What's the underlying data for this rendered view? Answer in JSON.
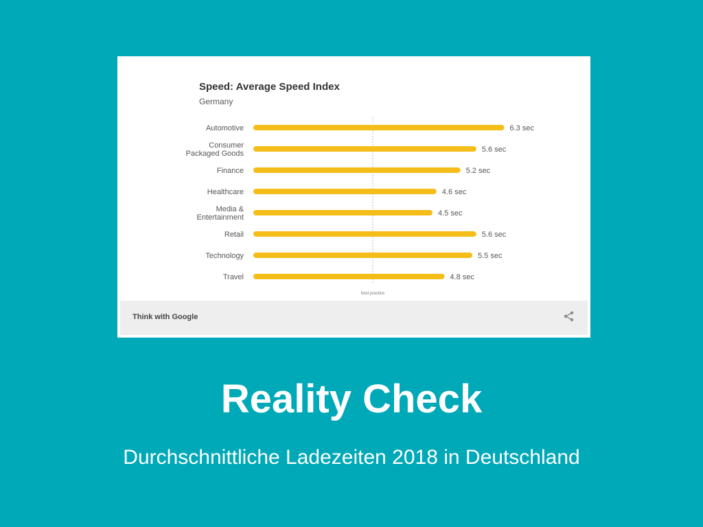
{
  "chart_data": {
    "type": "bar",
    "orientation": "horizontal",
    "title": "Speed: Average Speed Index",
    "subtitle": "Germany",
    "categories": [
      [
        "Automotive"
      ],
      [
        "Consumer",
        "Packaged Goods"
      ],
      [
        "Finance"
      ],
      [
        "Healthcare"
      ],
      [
        "Media &",
        "Entertainment"
      ],
      [
        "Retail"
      ],
      [
        "Technology"
      ],
      [
        "Travel"
      ]
    ],
    "values": [
      6.3,
      5.6,
      5.2,
      4.6,
      4.5,
      5.6,
      5.5,
      4.8
    ],
    "value_labels": [
      "6.3 sec",
      "5.6 sec",
      "5.2 sec",
      "4.6 sec",
      "4.5 sec",
      "5.6 sec",
      "5.5 sec",
      "4.8 sec"
    ],
    "reference_line": {
      "value": 3.0,
      "label": "best practice"
    },
    "bar_color": "#f5bd1a",
    "grid": false
  },
  "card": {
    "footer_brand": "Think with Google",
    "share_icon": "share-icon"
  },
  "slide": {
    "title": "Reality Check",
    "subtitle": "Durchschnittliche Ladezeiten 2018 in Deutschland",
    "background": "#00a9b7"
  }
}
